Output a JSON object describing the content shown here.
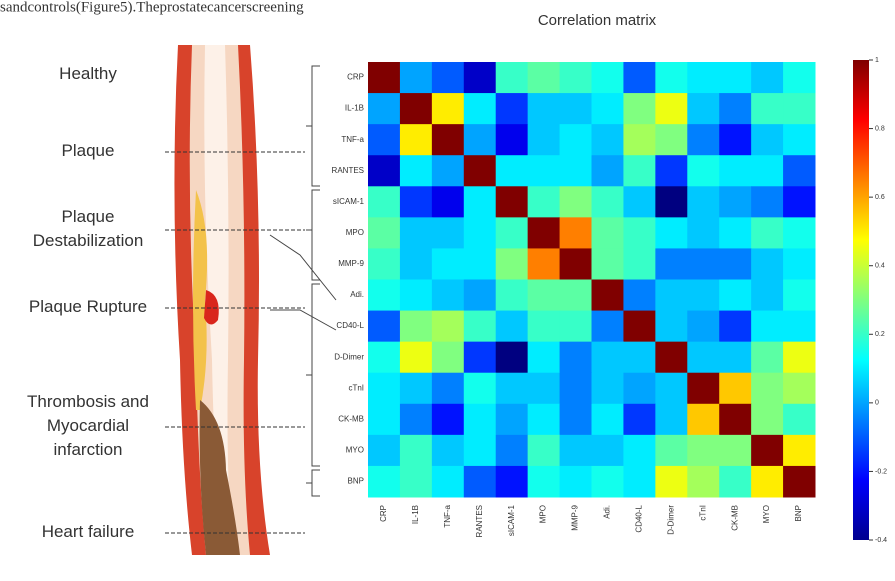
{
  "caption_fragment": "sandcontrols(Figure5).Theprostatecancerscreening",
  "stages": [
    "Healthy",
    "Plaque",
    "Plaque Destabilization",
    "Plaque Rupture",
    "Thrombosis and Myocardial infarction",
    "Heart failure"
  ],
  "chart_data": {
    "type": "heatmap",
    "title": "Correlation matrix",
    "categories": [
      "CRP",
      "IL-1B",
      "TNF-a",
      "RANTES",
      "sICAM-1",
      "MPO",
      "MMP-9",
      "Adi.",
      "CD40-L",
      "D-Dimer",
      "cTnI",
      "CK-MB",
      "MYO",
      "BNP"
    ],
    "values": [
      [
        1,
        0.0,
        -0.1,
        -0.3,
        0.2,
        0.25,
        0.2,
        0.15,
        -0.1,
        0.15,
        0.1,
        0.1,
        0.05,
        0.15
      ],
      [
        0.0,
        1,
        0.5,
        0.1,
        -0.15,
        0.05,
        0.05,
        0.1,
        0.3,
        0.45,
        0.05,
        -0.05,
        0.2,
        0.2
      ],
      [
        -0.1,
        0.5,
        1,
        0.0,
        -0.25,
        0.05,
        0.1,
        0.05,
        0.35,
        0.3,
        -0.05,
        -0.2,
        0.05,
        0.1
      ],
      [
        -0.3,
        0.1,
        0.0,
        1,
        0.1,
        0.1,
        0.1,
        0.0,
        0.2,
        -0.15,
        0.15,
        0.1,
        0.1,
        -0.1
      ],
      [
        0.2,
        -0.15,
        -0.25,
        0.1,
        1,
        0.2,
        0.3,
        0.2,
        0.05,
        -0.4,
        0.05,
        0.0,
        -0.05,
        -0.2
      ],
      [
        0.25,
        0.05,
        0.05,
        0.1,
        0.2,
        1,
        0.65,
        0.25,
        0.2,
        0.1,
        0.05,
        0.1,
        0.2,
        0.15
      ],
      [
        0.2,
        0.05,
        0.1,
        0.1,
        0.3,
        0.65,
        1,
        0.25,
        0.2,
        -0.05,
        -0.05,
        -0.05,
        0.05,
        0.1
      ],
      [
        0.15,
        0.1,
        0.05,
        0.0,
        0.2,
        0.25,
        0.25,
        1,
        -0.05,
        0.05,
        0.05,
        0.1,
        0.05,
        0.15
      ],
      [
        -0.1,
        0.3,
        0.35,
        0.2,
        0.05,
        0.2,
        0.2,
        -0.05,
        1,
        0.05,
        0.0,
        -0.15,
        0.1,
        0.1
      ],
      [
        0.15,
        0.45,
        0.3,
        -0.15,
        -0.4,
        0.1,
        -0.05,
        0.05,
        0.05,
        1,
        0.05,
        0.05,
        0.25,
        0.45
      ],
      [
        0.1,
        0.05,
        -0.05,
        0.15,
        0.05,
        0.05,
        -0.05,
        0.05,
        0.0,
        0.05,
        1,
        0.55,
        0.3,
        0.35
      ],
      [
        0.1,
        -0.05,
        -0.2,
        0.1,
        0.0,
        0.1,
        -0.05,
        0.1,
        -0.15,
        0.05,
        0.55,
        1,
        0.3,
        0.2
      ],
      [
        0.05,
        0.2,
        0.05,
        0.1,
        -0.05,
        0.2,
        0.05,
        0.05,
        0.1,
        0.25,
        0.3,
        0.3,
        1,
        0.5
      ],
      [
        0.15,
        0.2,
        0.1,
        -0.1,
        -0.2,
        0.15,
        0.1,
        0.15,
        0.1,
        0.45,
        0.35,
        0.2,
        0.5,
        1
      ]
    ],
    "zlim": [
      -0.4,
      1
    ],
    "zticks": [
      -0.4,
      -0.2,
      0,
      0.2,
      0.4,
      0.6,
      0.8,
      1
    ],
    "colormap": "jet"
  }
}
